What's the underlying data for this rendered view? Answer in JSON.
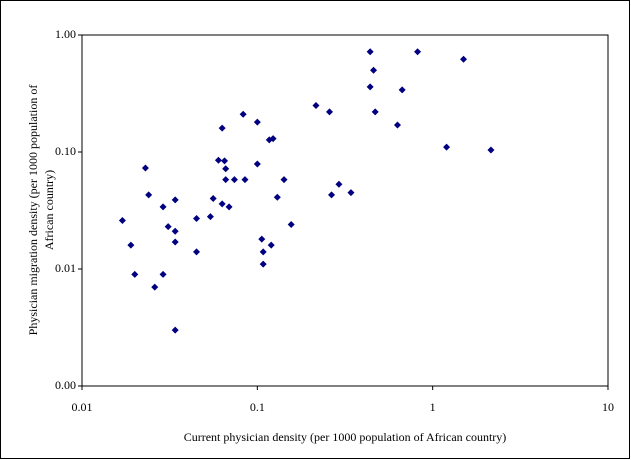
{
  "chart_data": {
    "type": "scatter",
    "x_label": "Current physician density (per 1000 population of African country)",
    "y_label": [
      "Physician migration density  (per 1000 population of",
      "African country)"
    ],
    "x": [
      0.017,
      0.019,
      0.02,
      0.023,
      0.024,
      0.026,
      0.029,
      0.029,
      0.031,
      0.034,
      0.034,
      0.034,
      0.034,
      0.045,
      0.045,
      0.054,
      0.056,
      0.06,
      0.063,
      0.063,
      0.065,
      0.066,
      0.066,
      0.069,
      0.074,
      0.083,
      0.085,
      0.1,
      0.1,
      0.106,
      0.108,
      0.108,
      0.117,
      0.123,
      0.12,
      0.13,
      0.142,
      0.156,
      0.216,
      0.258,
      0.265,
      0.292,
      0.342,
      0.44,
      0.44,
      0.46,
      0.47,
      0.67,
      0.63,
      0.82,
      1.2,
      1.5,
      2.15
    ],
    "series": [
      {
        "color": "#000080",
        "values": [
          0.026,
          0.016,
          0.009,
          0.073,
          0.043,
          0.007,
          0.034,
          0.009,
          0.023,
          0.021,
          0.017,
          0.039,
          0.003,
          0.014,
          0.027,
          0.028,
          0.04,
          0.085,
          0.036,
          0.16,
          0.084,
          0.072,
          0.058,
          0.034,
          0.058,
          0.21,
          0.058,
          0.079,
          0.18,
          0.018,
          0.014,
          0.011,
          0.127,
          0.13,
          0.016,
          0.041,
          0.058,
          0.024,
          0.25,
          0.22,
          0.043,
          0.053,
          0.045,
          0.72,
          0.36,
          0.5,
          0.22,
          0.34,
          0.17,
          0.72,
          0.11,
          0.62,
          0.104
        ]
      }
    ],
    "xlim": [
      0.01,
      10
    ],
    "xticks": [
      0.01,
      0.1,
      1,
      10
    ],
    "xscale": "log",
    "ylim": [
      0.001,
      1
    ],
    "yticks": [
      {
        "value": 0.001,
        "label": "0.00"
      },
      {
        "value": 0.01,
        "label": "0.01"
      },
      {
        "value": 0.1,
        "label": "0.10"
      },
      {
        "value": 1,
        "label": "1.00"
      }
    ],
    "yscale": "log",
    "grid": false
  }
}
